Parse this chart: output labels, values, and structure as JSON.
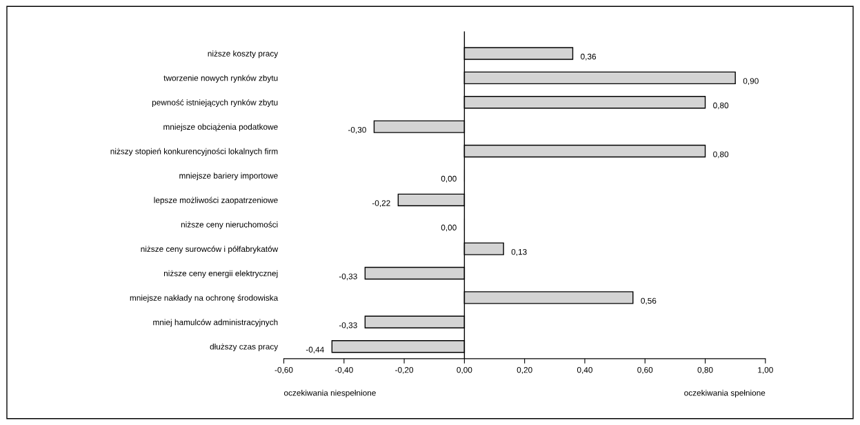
{
  "chart_data": {
    "type": "bar",
    "orientation": "horizontal",
    "categories": [
      "niższe koszty pracy",
      "tworzenie nowych rynków zbytu",
      "pewność istniejących rynków zbytu",
      "mniejsze obciążenia podatkowe",
      "niższy stopień konkurencyjności lokalnych firm",
      "mniejsze bariery importowe",
      "lepsze możliwości zaopatrzeniowe",
      "niższe ceny nieruchomości",
      "niższe ceny surowców i półfabrykatów",
      "niższe ceny energii elektrycznej",
      "mniejsze nakłady na ochronę środowiska",
      "mniej hamulców administracyjnych",
      "dłuższy czas pracy"
    ],
    "values": [
      0.36,
      0.9,
      0.8,
      -0.3,
      0.8,
      0.0,
      -0.22,
      0.0,
      0.13,
      -0.33,
      0.56,
      -0.33,
      -0.44
    ],
    "value_labels": [
      "0,36",
      "0,90",
      "0,80",
      "-0,30",
      "0,80",
      "0,00",
      "-0,22",
      "0,00",
      "0,13",
      "-0,33",
      "0,56",
      "-0,33",
      "-0,44"
    ],
    "color": "#d4d4d4",
    "xlim": [
      -0.6,
      1.0
    ],
    "xticks": [
      {
        "value": -0.6,
        "label": "-0,60"
      },
      {
        "value": -0.4,
        "label": "-0,40"
      },
      {
        "value": -0.2,
        "label": "-0,20"
      },
      {
        "value": 0,
        "label": "0,00"
      },
      {
        "value": 0.2,
        "label": "0,20"
      },
      {
        "value": 0.4,
        "label": "0,40"
      },
      {
        "value": 0.6,
        "label": "0,60"
      },
      {
        "value": 0.8,
        "label": "0,80"
      },
      {
        "value": 1.0,
        "label": "1,00"
      }
    ],
    "ref_lines": [
      {
        "axis": "x",
        "value": 0,
        "color": "#000000"
      }
    ],
    "annotations": [
      "oczekiwania niespełnione",
      "oczekiwania spełnione"
    ],
    "grid": false,
    "legend": false
  }
}
